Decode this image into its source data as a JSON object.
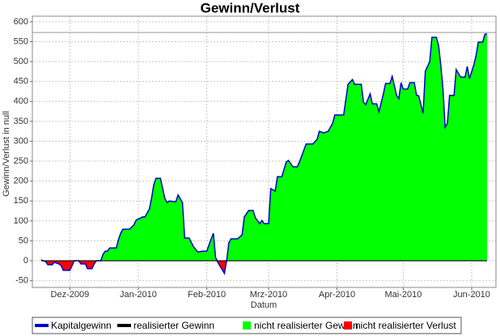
{
  "chart_data": {
    "type": "area",
    "title": "Gewinn/Verlust",
    "x_label": "Datum",
    "y_label": "Gewinn/Verlust in null",
    "x": [
      -13,
      -11,
      -10,
      -8,
      -7,
      -5,
      -4,
      -3,
      0,
      1,
      2,
      4,
      5,
      7,
      8,
      10,
      11,
      12,
      14,
      15,
      16,
      17,
      18,
      21,
      22,
      23,
      24,
      27,
      29,
      30,
      33,
      34,
      36,
      37,
      38,
      39,
      41,
      43,
      44,
      45,
      48,
      49,
      51,
      52,
      54,
      56,
      58,
      60,
      62,
      64,
      65,
      66,
      67,
      70,
      71,
      72,
      73,
      76,
      78,
      79,
      81,
      83,
      84,
      86,
      87,
      88,
      90,
      91,
      93,
      94,
      96,
      98,
      99,
      101,
      103,
      104,
      106,
      107,
      110,
      112,
      113,
      115,
      117,
      119,
      120,
      124,
      126,
      128,
      129,
      132,
      133,
      134,
      136,
      137,
      139,
      140,
      142,
      143,
      145,
      146,
      148,
      149,
      150,
      151,
      153,
      154,
      156,
      157,
      158,
      160,
      161,
      163,
      164,
      166,
      167,
      168,
      169,
      170,
      171,
      172,
      174,
      175,
      177,
      179,
      180,
      181,
      183,
      184,
      185,
      187,
      188,
      189
    ],
    "series": [
      {
        "name": "Kapitalgewinn",
        "color": "#0000cc",
        "values": [
          2,
          -2,
          -10,
          -10,
          -4,
          -8,
          -12,
          -24,
          -24,
          -12,
          0,
          0,
          -8,
          -8,
          -20,
          -20,
          -8,
          0,
          0,
          16,
          24,
          24,
          32,
          32,
          53,
          69,
          79,
          79,
          90,
          102,
          110,
          110,
          130,
          157,
          191,
          207,
          207,
          157,
          146,
          150,
          148,
          165,
          146,
          57,
          57,
          35,
          22,
          24,
          24,
          55,
          69,
          8,
          -4,
          -32,
          0,
          45,
          55,
          55,
          65,
          110,
          126,
          126,
          108,
          93,
          101,
          93,
          93,
          181,
          175,
          211,
          211,
          248,
          252,
          236,
          236,
          248,
          278,
          293,
          293,
          305,
          325,
          321,
          325,
          345,
          366,
          366,
          443,
          455,
          443,
          443,
          398,
          392,
          419,
          394,
          394,
          374,
          419,
          445,
          445,
          463,
          415,
          407,
          447,
          431,
          431,
          447,
          447,
          416,
          414,
          370,
          476,
          500,
          561,
          561,
          541,
          492,
          431,
          335,
          345,
          415,
          415,
          480,
          461,
          461,
          488,
          457,
          492,
          516,
          549,
          549,
          569,
          569
        ]
      },
      {
        "name": "realisierter Gewinn",
        "color": "#000000",
        "x": [
          -13,
          189
        ],
        "values": [
          0,
          0
        ]
      }
    ],
    "areas": [
      {
        "name": "nicht realisierter Gewinn",
        "color": "#00ff00"
      },
      {
        "name": "nicht realisierter Verlust",
        "color": "#ff0000"
      }
    ],
    "reference_line": 573,
    "xlim": [
      -17,
      193
    ],
    "xticks": [
      {
        "value": 0,
        "label": "Dez-2009"
      },
      {
        "value": 31,
        "label": "Jan-2010"
      },
      {
        "value": 62,
        "label": "Feb-2010"
      },
      {
        "value": 90,
        "label": "Mrz-2010"
      },
      {
        "value": 121,
        "label": "Apr-2010"
      },
      {
        "value": 151,
        "label": "Mai-2010"
      },
      {
        "value": 182,
        "label": "Jun-2010"
      }
    ],
    "ylim": [
      -67,
      614
    ],
    "yticks": [
      -50,
      0,
      50,
      100,
      150,
      200,
      250,
      300,
      350,
      400,
      450,
      500,
      550,
      600
    ],
    "grid": true,
    "legend": "bottom"
  }
}
